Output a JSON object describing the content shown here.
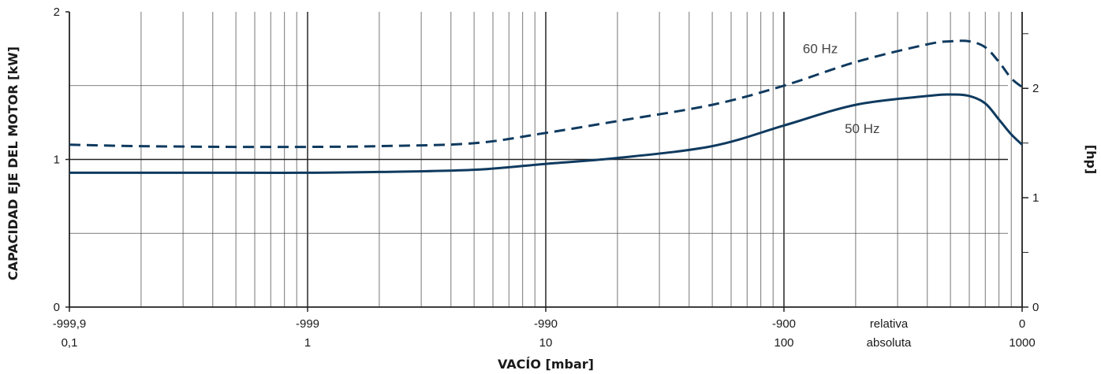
{
  "chart_data": {
    "type": "line",
    "xscale": "log",
    "xlim": [
      0.1,
      1000
    ],
    "ylim": [
      0,
      2
    ],
    "y2lim": [
      0,
      2.7
    ],
    "x_ticks": [
      {
        "abs": 0.1,
        "rel_label": "-999,9",
        "abs_label": "0,1"
      },
      {
        "abs": 1,
        "rel_label": "-999",
        "abs_label": "1"
      },
      {
        "abs": 10,
        "rel_label": "-990",
        "abs_label": "10"
      },
      {
        "abs": 100,
        "rel_label": "-900",
        "abs_label": "100"
      },
      {
        "abs": 1000,
        "rel_label": "0",
        "abs_label": "1000"
      }
    ],
    "x_scale_labels": {
      "relative": "relativa",
      "absolute": "absoluta"
    },
    "y_ticks": [
      "0",
      "1",
      "2"
    ],
    "y2_ticks": [
      "0",
      "1",
      "2"
    ],
    "xlabel": "VACÍO  [mbar]",
    "ylabel": "CAPACIDAD EJE DEL MOTOR  [kW]",
    "y2label": "[hp]",
    "grid": true,
    "series": [
      {
        "name": "60 Hz",
        "style": "dashed",
        "color": "#0f3a5f",
        "x": [
          0.1,
          0.2,
          0.5,
          1,
          2,
          5,
          10,
          20,
          50,
          100,
          200,
          400,
          500,
          600,
          700,
          800,
          900,
          1000
        ],
        "y": [
          1.1,
          1.09,
          1.085,
          1.085,
          1.09,
          1.11,
          1.18,
          1.26,
          1.37,
          1.5,
          1.66,
          1.78,
          1.8,
          1.8,
          1.76,
          1.66,
          1.55,
          1.49
        ]
      },
      {
        "name": "50 Hz",
        "style": "solid",
        "color": "#0f3a5f",
        "x": [
          0.1,
          0.2,
          0.5,
          1,
          2,
          5,
          10,
          20,
          50,
          100,
          200,
          400,
          500,
          600,
          700,
          800,
          900,
          1000
        ],
        "y": [
          0.91,
          0.91,
          0.91,
          0.91,
          0.915,
          0.93,
          0.97,
          1.01,
          1.09,
          1.23,
          1.37,
          1.43,
          1.44,
          1.43,
          1.38,
          1.27,
          1.17,
          1.1
        ]
      }
    ]
  }
}
